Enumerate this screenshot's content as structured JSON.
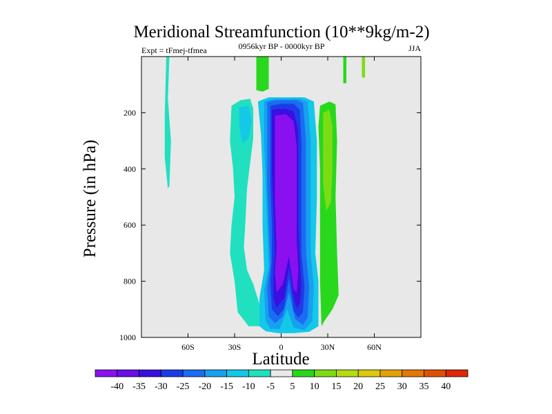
{
  "chart_data": {
    "type": "contour",
    "title": "Meridional Streamfunction (10**9kg/m-2)",
    "experiment": "Expt = tFmej-tfmea",
    "period": "0956kyr BP - 0000kyr BP",
    "season": "JJA",
    "xlabel": "Latitude",
    "ylabel": "Pressure (in hPa)",
    "xlim": [
      -90,
      90
    ],
    "ylim": [
      0,
      1000
    ],
    "y_inverted": true,
    "x_ticks": [
      {
        "value": -60,
        "label": "60S"
      },
      {
        "value": -30,
        "label": "30S"
      },
      {
        "value": 0,
        "label": "0"
      },
      {
        "value": 30,
        "label": "30N"
      },
      {
        "value": 60,
        "label": "60N"
      }
    ],
    "y_ticks": [
      {
        "value": 200,
        "label": "200"
      },
      {
        "value": 400,
        "label": "400"
      },
      {
        "value": 600,
        "label": "600"
      },
      {
        "value": 800,
        "label": "800"
      },
      {
        "value": 1000,
        "label": "1000"
      }
    ],
    "colorbar": {
      "labels": [
        "-40",
        "-35",
        "-30",
        "-25",
        "-20",
        "-15",
        "-10",
        "-5",
        "5",
        "10",
        "15",
        "20",
        "25",
        "30",
        "35",
        "40"
      ],
      "colors": [
        "#8b10f0",
        "#6a0ee8",
        "#3a0fe0",
        "#1c3ce8",
        "#1a6df0",
        "#16a0f0",
        "#14c8e8",
        "#20e0c0",
        "#e8e8e8",
        "#28d81c",
        "#7cdc14",
        "#b4dc10",
        "#dcc80c",
        "#e4a008",
        "#e47806",
        "#e05004",
        "#dc2804"
      ]
    },
    "regions": [
      {
        "name": "sh-ferrel-cell",
        "level": -5,
        "color": "#20e0c0",
        "points": [
          [
            -32,
            175
          ],
          [
            -26,
            155
          ],
          [
            -20,
            150
          ],
          [
            -18,
            185
          ],
          [
            -18,
            290
          ],
          [
            -20,
            380
          ],
          [
            -22,
            470
          ],
          [
            -23,
            580
          ],
          [
            -24,
            680
          ],
          [
            -22,
            760
          ],
          [
            -18,
            810
          ],
          [
            -14,
            880
          ],
          [
            -14,
            960
          ],
          [
            -21,
            960
          ],
          [
            -28,
            910
          ],
          [
            -30,
            800
          ],
          [
            -33,
            700
          ],
          [
            -32,
            600
          ],
          [
            -30,
            500
          ],
          [
            -31,
            400
          ],
          [
            -33,
            300
          ]
        ]
      },
      {
        "name": "sh-subtropical-patch",
        "level": -10,
        "color": "#14c8e8",
        "points": [
          [
            -27,
            180
          ],
          [
            -21,
            175
          ],
          [
            -19,
            230
          ],
          [
            -21,
            290
          ],
          [
            -25,
            310
          ],
          [
            -27,
            250
          ]
        ]
      },
      {
        "name": "hadley-outer",
        "level": -10,
        "color": "#14c8e8",
        "points": [
          [
            -15,
            160
          ],
          [
            -8,
            145
          ],
          [
            15,
            145
          ],
          [
            21,
            160
          ],
          [
            23,
            300
          ],
          [
            23,
            500
          ],
          [
            22,
            700
          ],
          [
            24,
            800
          ],
          [
            24,
            960
          ],
          [
            18,
            980
          ],
          [
            8,
            985
          ],
          [
            -2,
            985
          ],
          [
            -10,
            978
          ],
          [
            -14,
            960
          ],
          [
            -14,
            860
          ],
          [
            -11,
            760
          ],
          [
            -12,
            600
          ],
          [
            -12,
            420
          ],
          [
            -13,
            280
          ]
        ]
      },
      {
        "name": "hadley-l15",
        "level": -15,
        "color": "#16a0f0",
        "points": [
          [
            -11,
            160
          ],
          [
            -5,
            150
          ],
          [
            12,
            150
          ],
          [
            17,
            160
          ],
          [
            19,
            300
          ],
          [
            19,
            500
          ],
          [
            19,
            700
          ],
          [
            21,
            820
          ],
          [
            20,
            940
          ],
          [
            15,
            975
          ],
          [
            8,
            965
          ],
          [
            4,
            900
          ],
          [
            -1,
            970
          ],
          [
            -7,
            970
          ],
          [
            -10,
            940
          ],
          [
            -11,
            830
          ],
          [
            -8,
            750
          ],
          [
            -9,
            600
          ],
          [
            -10,
            450
          ],
          [
            -11,
            300
          ]
        ]
      },
      {
        "name": "hadley-l20",
        "level": -20,
        "color": "#1a6df0",
        "points": [
          [
            -9,
            162
          ],
          [
            -3,
            155
          ],
          [
            10,
            155
          ],
          [
            14,
            165
          ],
          [
            16,
            300
          ],
          [
            16,
            500
          ],
          [
            16,
            700
          ],
          [
            18,
            820
          ],
          [
            17,
            930
          ],
          [
            14,
            955
          ],
          [
            9,
            935
          ],
          [
            5,
            840
          ],
          [
            1,
            925
          ],
          [
            -4,
            950
          ],
          [
            -8,
            925
          ],
          [
            -9,
            820
          ],
          [
            -7,
            740
          ],
          [
            -8,
            600
          ],
          [
            -9,
            450
          ],
          [
            -9,
            300
          ]
        ]
      },
      {
        "name": "hadley-l25",
        "level": -25,
        "color": "#1c3ce8",
        "points": [
          [
            -7,
            175
          ],
          [
            0,
            168
          ],
          [
            8,
            168
          ],
          [
            12,
            190
          ],
          [
            13,
            300
          ],
          [
            13,
            500
          ],
          [
            13,
            700
          ],
          [
            15,
            820
          ],
          [
            14,
            910
          ],
          [
            11,
            930
          ],
          [
            8,
            905
          ],
          [
            5,
            790
          ],
          [
            2,
            895
          ],
          [
            -2,
            925
          ],
          [
            -6,
            900
          ],
          [
            -7,
            800
          ],
          [
            -6,
            720
          ],
          [
            -6,
            600
          ],
          [
            -7,
            450
          ],
          [
            -7,
            300
          ]
        ]
      },
      {
        "name": "hadley-l30",
        "level": -30,
        "color": "#3a0fe0",
        "points": [
          [
            -6,
            190
          ],
          [
            2,
            185
          ],
          [
            8,
            195
          ],
          [
            11,
            260
          ],
          [
            11,
            400
          ],
          [
            11,
            600
          ],
          [
            12,
            720
          ],
          [
            13,
            820
          ],
          [
            12,
            880
          ],
          [
            10,
            895
          ],
          [
            8,
            860
          ],
          [
            5,
            750
          ],
          [
            2,
            860
          ],
          [
            -3,
            895
          ],
          [
            -5,
            860
          ],
          [
            -5,
            780
          ],
          [
            -4,
            700
          ],
          [
            -5,
            550
          ],
          [
            -6,
            420
          ],
          [
            -6,
            280
          ]
        ]
      },
      {
        "name": "hadley-core",
        "level": -35,
        "color": "#8b10f0",
        "points": [
          [
            -4,
            210
          ],
          [
            3,
            205
          ],
          [
            8,
            230
          ],
          [
            10,
            320
          ],
          [
            10,
            500
          ],
          [
            10,
            650
          ],
          [
            11,
            760
          ],
          [
            10,
            840
          ],
          [
            8,
            830
          ],
          [
            5,
            710
          ],
          [
            1,
            810
          ],
          [
            -3,
            840
          ],
          [
            -4,
            770
          ],
          [
            -3,
            680
          ],
          [
            -4,
            520
          ],
          [
            -4,
            350
          ]
        ]
      },
      {
        "name": "nh-ferrel-cell",
        "level": 5,
        "color": "#28d81c",
        "points": [
          [
            25,
            175
          ],
          [
            31,
            160
          ],
          [
            35,
            170
          ],
          [
            36,
            300
          ],
          [
            35,
            500
          ],
          [
            36,
            700
          ],
          [
            37,
            850
          ],
          [
            33,
            900
          ],
          [
            28,
            940
          ],
          [
            26,
            960
          ],
          [
            25,
            800
          ],
          [
            25,
            600
          ],
          [
            25,
            400
          ],
          [
            24,
            250
          ]
        ]
      },
      {
        "name": "nh-ferrel-core",
        "level": 10,
        "color": "#7cdc14",
        "points": [
          [
            27,
            200
          ],
          [
            31,
            190
          ],
          [
            33,
            250
          ],
          [
            33,
            400
          ],
          [
            32,
            520
          ],
          [
            29,
            550
          ],
          [
            27,
            450
          ],
          [
            27,
            300
          ]
        ]
      },
      {
        "name": "nh-strat-strip-1",
        "level": 5,
        "color": "#28d81c",
        "points": [
          [
            -16,
            0
          ],
          [
            -8,
            0
          ],
          [
            -8,
            115
          ],
          [
            -12,
            125
          ],
          [
            -16,
            120
          ]
        ]
      },
      {
        "name": "nh-strat-strip-2",
        "level": 5,
        "color": "#28d81c",
        "points": [
          [
            40,
            0
          ],
          [
            42,
            0
          ],
          [
            42,
            95
          ],
          [
            40,
            95
          ]
        ]
      },
      {
        "name": "nh-strat-strip-3",
        "level": 10,
        "color": "#7cdc14",
        "points": [
          [
            52,
            0
          ],
          [
            54,
            0
          ],
          [
            54,
            75
          ],
          [
            52,
            75
          ]
        ]
      },
      {
        "name": "sh-polar-strip",
        "level": -5,
        "color": "#20e0c0",
        "points": [
          [
            -74,
            0
          ],
          [
            -72,
            0
          ],
          [
            -73,
            150
          ],
          [
            -71,
            300
          ],
          [
            -72,
            460
          ],
          [
            -73,
            470
          ],
          [
            -75,
            360
          ],
          [
            -75,
            200
          ]
        ]
      },
      {
        "name": "sh-lower-patch",
        "level": -5,
        "color": "#20e0c0",
        "points": [
          [
            -25,
            790
          ],
          [
            -24,
            780
          ],
          [
            -24,
            840
          ],
          [
            -25,
            850
          ]
        ]
      }
    ]
  }
}
